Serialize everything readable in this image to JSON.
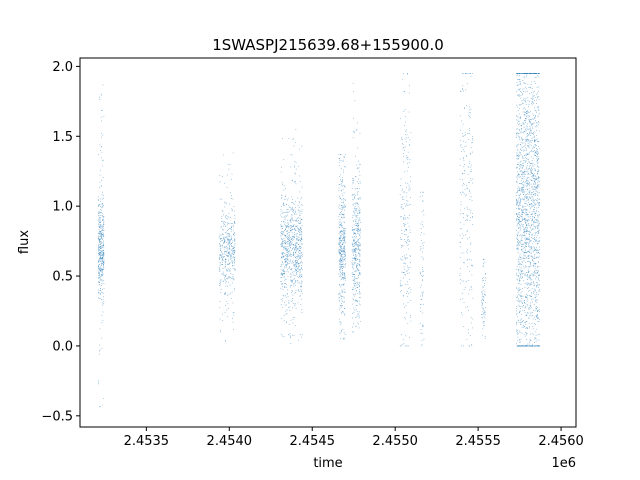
{
  "chart_data": {
    "type": "scatter",
    "title": "1SWASPJ215639.68+155900.0",
    "xlabel": "time",
    "ylabel": "flux",
    "x_offset_label": "1e6",
    "xlim": [
      2453100,
      2456090
    ],
    "ylim": [
      -0.58,
      2.06
    ],
    "x_ticks": [
      2453500,
      2454000,
      2454500,
      2455000,
      2455500,
      2456000
    ],
    "x_tick_labels": [
      "2.4535",
      "2.4540",
      "2.4545",
      "2.4550",
      "2.4555",
      "2.4560"
    ],
    "y_ticks": [
      -0.5,
      0.0,
      0.5,
      1.0,
      1.5,
      2.0
    ],
    "y_tick_labels": [
      "−0.5",
      "0.0",
      "0.5",
      "1.0",
      "1.5",
      "2.0"
    ],
    "grid": false,
    "legend": "none",
    "point_color": "#1f77b4",
    "series": [
      {
        "clusters": [
          {
            "x_range": [
              2453210,
              2453245
            ],
            "y_core": [
              0.42,
              0.97
            ],
            "y_range": [
              -0.45,
              1.88
            ],
            "density": "medium"
          },
          {
            "x_range": [
              2453940,
              2454035
            ],
            "y_core": [
              0.42,
              0.93
            ],
            "y_range": [
              0.03,
              1.42
            ],
            "density": "medium"
          },
          {
            "x_range": [
              2454310,
              2454440
            ],
            "y_core": [
              0.38,
              1.0
            ],
            "y_range": [
              0.0,
              1.55
            ],
            "density": "high"
          },
          {
            "x_range": [
              2454660,
              2454700
            ],
            "y_core": [
              0.3,
              1.12
            ],
            "y_range": [
              0.05,
              1.37
            ],
            "density": "medium"
          },
          {
            "x_range": [
              2454740,
              2454790
            ],
            "y_core": [
              0.3,
              1.1
            ],
            "y_range": [
              0.1,
              1.92
            ],
            "density": "medium"
          },
          {
            "x_range": [
              2455030,
              2455095
            ],
            "y_core": [
              0.1,
              1.6
            ],
            "y_range": [
              0.0,
              1.95
            ],
            "density": "low"
          },
          {
            "x_range": [
              2455150,
              2455175
            ],
            "y_core": [
              0.1,
              1.1
            ],
            "y_range": [
              0.0,
              1.1
            ],
            "density": "sparse"
          },
          {
            "x_range": [
              2455390,
              2455470
            ],
            "y_core": [
              0.1,
              1.9
            ],
            "y_range": [
              0.0,
              1.95
            ],
            "density": "low"
          },
          {
            "x_range": [
              2455520,
              2455545
            ],
            "y_core": [
              0.15,
              0.55
            ],
            "y_range": [
              0.05,
              0.62
            ],
            "density": "sparse"
          },
          {
            "x_range": [
              2455730,
              2455870
            ],
            "y_core": [
              0.0,
              1.95
            ],
            "y_range": [
              0.0,
              1.95
            ],
            "density": "very-high"
          }
        ]
      }
    ]
  }
}
